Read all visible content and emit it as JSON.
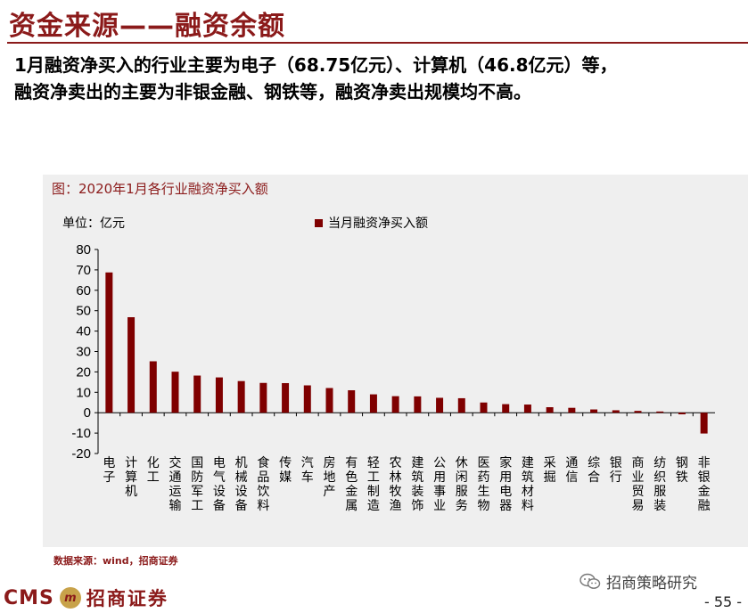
{
  "header": {
    "title": "资金来源——融资余额",
    "desc_line1": "1月融资净买入的行业主要为电子（68.75亿元）、计算机（46.8亿元）等，",
    "desc_line2": "融资净卖出的主要为非银金融、钢铁等，融资净卖出规模均不高。"
  },
  "chart_title": "图：2020年1月各行业融资净买入额",
  "unit_label": "单位：亿元",
  "legend_label": "当月融资净买入额",
  "source": "数据来源：wind，招商证券",
  "footer": {
    "logo_text": "CMS",
    "logo_mark": "m",
    "logo_cn": "招商证券",
    "watermark": "招商策略研究",
    "page_number": "- 55 -"
  },
  "colors": {
    "accent": "#8b1a1a",
    "bar": "#7f0000"
  },
  "chart_data": {
    "type": "bar",
    "title": "图：2020年1月各行业融资净买入额",
    "ylabel": "单位：亿元",
    "ylim": [
      -20,
      80
    ],
    "yticks": [
      80,
      70,
      60,
      50,
      40,
      30,
      20,
      10,
      0,
      -10,
      -20
    ],
    "legend": "top-center",
    "grid": false,
    "categories": [
      "电子",
      "计算机",
      "化工",
      "交通运输",
      "国防军工",
      "电气设备",
      "机械设备",
      "食品饮料",
      "传媒",
      "汽车",
      "房地产",
      "有色金属",
      "轻工制造",
      "农林牧渔",
      "建筑装饰",
      "公用事业",
      "休闲服务",
      "医药生物",
      "家用电器",
      "建筑材料",
      "采掘",
      "通信",
      "综合",
      "银行",
      "商业贸易",
      "纺织服装",
      "钢铁",
      "非银金融"
    ],
    "series": [
      {
        "name": "当月融资净买入额",
        "values": [
          68.75,
          46.8,
          25.2,
          20.1,
          18.2,
          17.3,
          15.5,
          14.6,
          14.5,
          13.4,
          12.1,
          11.0,
          9.0,
          8.1,
          8.0,
          7.3,
          7.1,
          5.0,
          4.2,
          4.0,
          2.7,
          2.4,
          1.6,
          1.2,
          0.9,
          0.6,
          -0.8,
          -10.2
        ]
      }
    ]
  }
}
